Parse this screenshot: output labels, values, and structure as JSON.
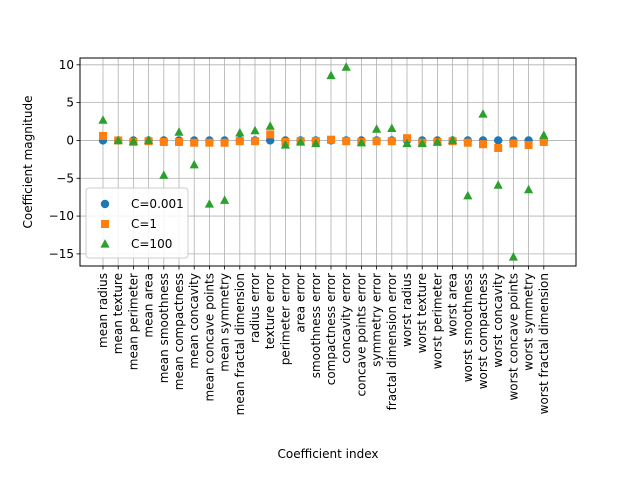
{
  "chart_data": {
    "type": "scatter",
    "xlabel": "Coefficient index",
    "ylabel": "Coefficient magnitude",
    "ylim": [
      -16.6,
      10.9
    ],
    "yticks": [
      -15,
      -10,
      -5,
      0,
      5,
      10
    ],
    "ytick_labels": [
      "−15",
      "−10",
      "−5",
      "0",
      "5",
      "10"
    ],
    "grid": true,
    "legend_position": "lower-left",
    "categories": [
      "mean radius",
      "mean texture",
      "mean perimeter",
      "mean area",
      "mean smoothness",
      "mean compactness",
      "mean concavity",
      "mean concave points",
      "mean symmetry",
      "mean fractal dimension",
      "radius error",
      "texture error",
      "perimeter error",
      "area error",
      "smoothness error",
      "compactness error",
      "concavity error",
      "concave points error",
      "symmetry error",
      "fractal dimension error",
      "worst radius",
      "worst texture",
      "worst perimeter",
      "worst area",
      "worst smoothness",
      "worst compactness",
      "worst concavity",
      "worst concave points",
      "worst symmetry",
      "worst fractal dimension"
    ],
    "series": [
      {
        "name": "C=0.001",
        "marker": "circle",
        "color": "#1f77b4",
        "values": [
          0.0,
          0.0,
          0.0,
          0.0,
          0.0,
          0.0,
          0.0,
          0.0,
          0.0,
          0.0,
          0.0,
          0.0,
          0.0,
          0.0,
          0.0,
          0.0,
          0.0,
          0.0,
          0.0,
          0.0,
          0.0,
          0.0,
          0.0,
          0.0,
          0.0,
          0.0,
          0.0,
          0.0,
          0.0,
          0.0
        ]
      },
      {
        "name": "C=1",
        "marker": "square",
        "color": "#ff7f0e",
        "values": [
          0.6,
          0.0,
          -0.2,
          -0.1,
          -0.2,
          -0.2,
          -0.3,
          -0.3,
          -0.3,
          -0.1,
          -0.1,
          0.8,
          -0.2,
          -0.1,
          -0.1,
          0.1,
          -0.1,
          -0.2,
          -0.1,
          -0.1,
          0.3,
          -0.3,
          -0.2,
          -0.1,
          -0.3,
          -0.5,
          -1.0,
          -0.4,
          -0.6,
          -0.2
        ]
      },
      {
        "name": "C=100",
        "marker": "triangle",
        "color": "#2ca02c",
        "values": [
          2.7,
          0.0,
          -0.1,
          0.0,
          -4.6,
          1.1,
          -3.2,
          -8.4,
          -7.9,
          1.0,
          1.3,
          1.9,
          -0.6,
          -0.2,
          -0.4,
          8.6,
          9.7,
          -0.3,
          1.5,
          1.6,
          -0.4,
          -0.4,
          -0.2,
          0.0,
          -7.3,
          3.5,
          -5.9,
          -15.4,
          -6.5,
          0.7
        ]
      }
    ]
  }
}
